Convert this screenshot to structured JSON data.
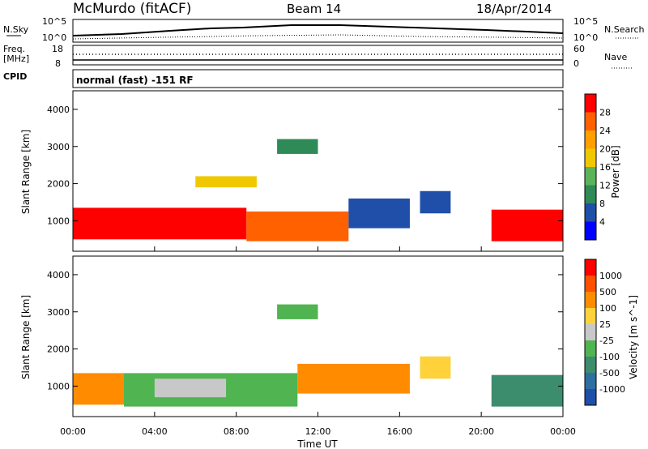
{
  "header": {
    "station": "McMurdo (fitACF)",
    "beam": "Beam 14",
    "date": "18/Apr/2014"
  },
  "noise_panel": {
    "left_label": "N.Sky",
    "left_ticks": [
      "10^5",
      "10^0"
    ],
    "right_label": "N.Search",
    "right_ticks": [
      "10^5",
      "10^0"
    ]
  },
  "freq_panel": {
    "left_label_1": "Freq.",
    "left_label_2": "[MHz]",
    "left_ticks": [
      "18",
      "8"
    ],
    "right_label": "Nave",
    "right_ticks": [
      "60",
      "0"
    ]
  },
  "cpid": {
    "label": "CPID",
    "value": "normal (fast) -151 RF"
  },
  "colors": {
    "power_scale": [
      "#0000ff",
      "#1f4fa8",
      "#2e8b57",
      "#5ab45a",
      "#f0c800",
      "#ffa000",
      "#ff6000",
      "#ff0000"
    ],
    "velocity_scale": [
      "#1f4fa8",
      "#2e6ea0",
      "#3c8c6e",
      "#50b450",
      "#c8c8c8",
      "#ffd23c",
      "#ff8c00",
      "#ff5000",
      "#ff0000"
    ]
  },
  "chart_data": [
    {
      "type": "heatmap",
      "name": "power",
      "ylabel": "Slant Range [km]",
      "ylim": [
        180,
        4500
      ],
      "yticks": [
        "1000",
        "2000",
        "3000",
        "4000"
      ],
      "x_ticks": [
        "00:00",
        "04:00",
        "08:00",
        "12:00",
        "16:00",
        "20:00",
        "00:00"
      ],
      "colorbar_label": "Power [dB]",
      "colorbar_ticks": [
        "28",
        "24",
        "20",
        "16",
        "12",
        "8",
        "4"
      ],
      "regions": [
        {
          "x0": 0.0,
          "x1": 8.5,
          "r0": 500,
          "r1": 1350,
          "level": 7
        },
        {
          "x0": 8.5,
          "x1": 13.5,
          "r0": 450,
          "r1": 1250,
          "level": 6
        },
        {
          "x0": 13.5,
          "x1": 16.5,
          "r0": 800,
          "r1": 1600,
          "level": 1
        },
        {
          "x0": 17.0,
          "x1": 18.5,
          "r0": 1200,
          "r1": 1800,
          "level": 1
        },
        {
          "x0": 20.5,
          "x1": 24.0,
          "r0": 450,
          "r1": 1300,
          "level": 7
        },
        {
          "x0": 10.0,
          "x1": 12.0,
          "r0": 2800,
          "r1": 3200,
          "level": 2
        },
        {
          "x0": 6.0,
          "x1": 9.0,
          "r0": 1900,
          "r1": 2200,
          "level": 4
        }
      ]
    },
    {
      "type": "heatmap",
      "name": "velocity",
      "ylabel": "Slant Range [km]",
      "ylim": [
        180,
        4500
      ],
      "yticks": [
        "1000",
        "2000",
        "3000",
        "4000"
      ],
      "x_ticks": [
        "00:00",
        "04:00",
        "08:00",
        "12:00",
        "16:00",
        "20:00",
        "00:00"
      ],
      "xlabel": "Time UT",
      "colorbar_label": "Velocity [m s^-1]",
      "colorbar_ticks": [
        "1000",
        "500",
        "100",
        "25",
        "-25",
        "-100",
        "-500",
        "-1000"
      ],
      "regions": [
        {
          "x0": 0.0,
          "x1": 2.5,
          "r0": 500,
          "r1": 1350,
          "level": 6
        },
        {
          "x0": 2.5,
          "x1": 11.0,
          "r0": 450,
          "r1": 1350,
          "level": 3
        },
        {
          "x0": 4.0,
          "x1": 7.5,
          "r0": 700,
          "r1": 1200,
          "level": 4
        },
        {
          "x0": 11.0,
          "x1": 16.5,
          "r0": 800,
          "r1": 1600,
          "level": 6
        },
        {
          "x0": 17.0,
          "x1": 18.5,
          "r0": 1200,
          "r1": 1800,
          "level": 5
        },
        {
          "x0": 20.5,
          "x1": 24.0,
          "r0": 450,
          "r1": 1300,
          "level": 2
        },
        {
          "x0": 10.0,
          "x1": 12.0,
          "r0": 2800,
          "r1": 3200,
          "level": 3
        }
      ]
    }
  ]
}
